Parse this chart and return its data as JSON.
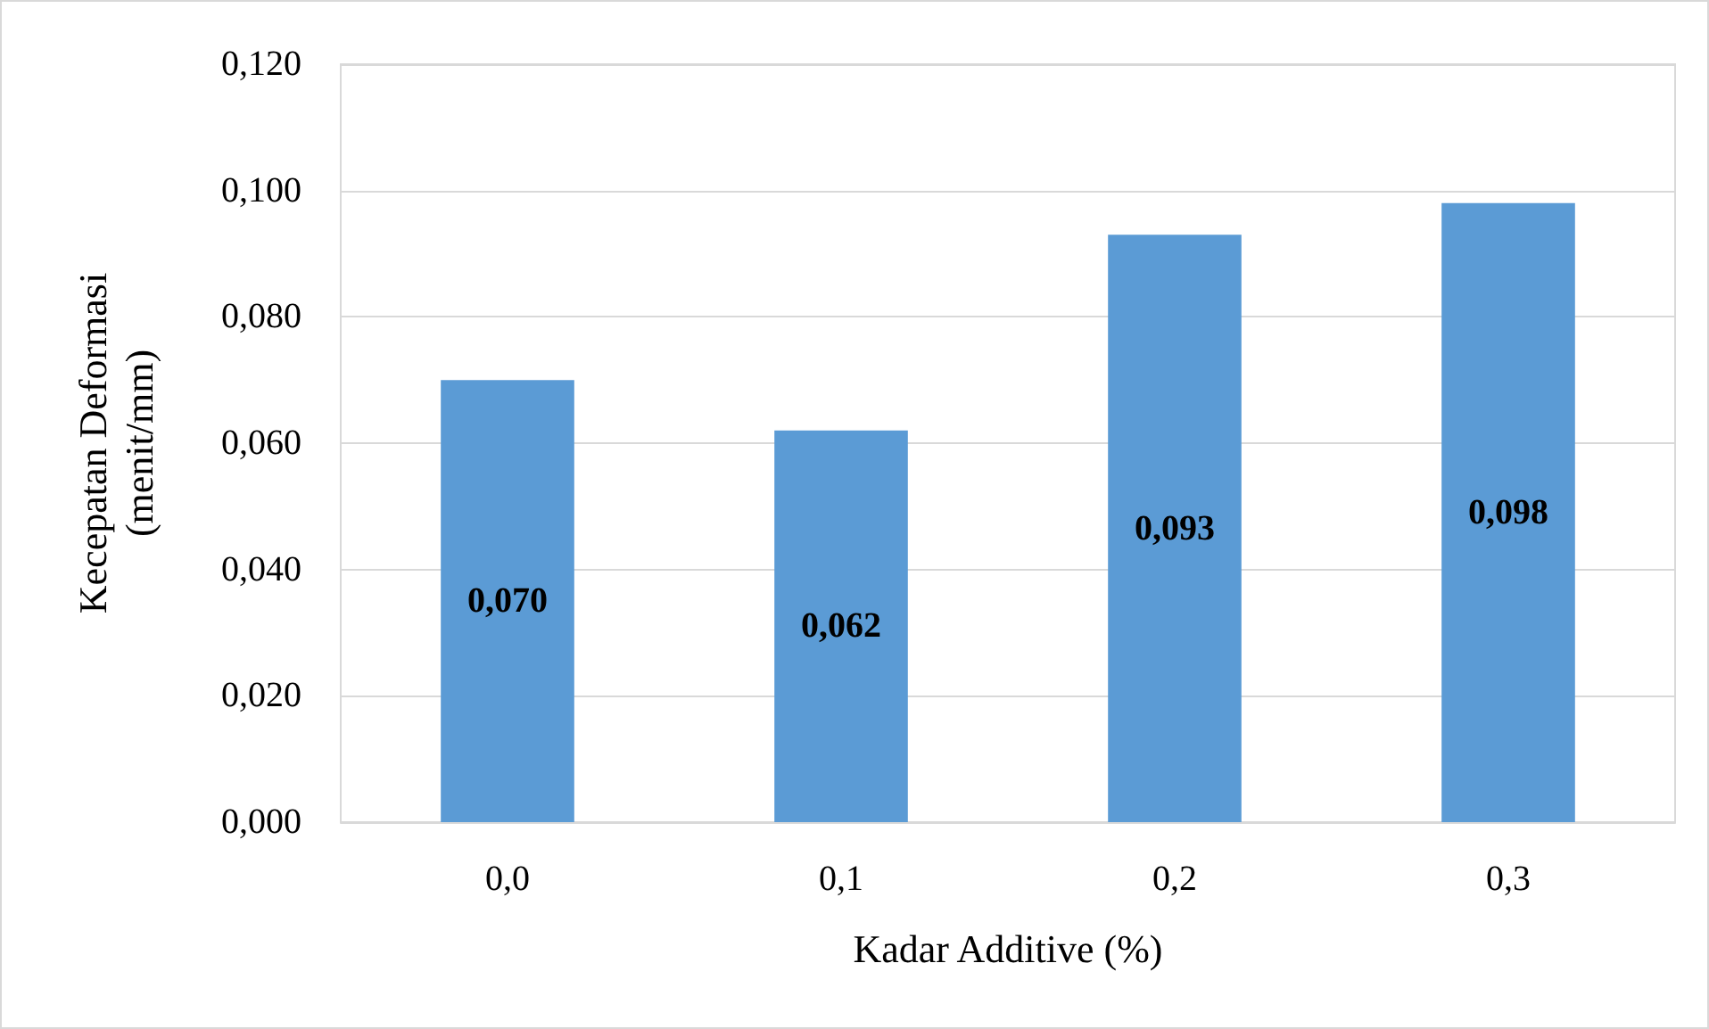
{
  "chart_data": {
    "type": "bar",
    "xlabel": "Kadar Additive (%)",
    "ylabel": "Kecepatan Deformasi\n(menit/mm)",
    "categories": [
      "0,0",
      "0,1",
      "0,2",
      "0,3"
    ],
    "values": [
      0.07,
      0.062,
      0.093,
      0.098
    ],
    "value_labels": [
      "0,070",
      "0,062",
      "0,093",
      "0,098"
    ],
    "color": "#5b9bd5",
    "ylim": [
      0,
      0.12
    ],
    "yticks": [
      {
        "value": 0,
        "label": "0,000"
      },
      {
        "value": 0.02,
        "label": "0,020"
      },
      {
        "value": 0.04,
        "label": "0,040"
      },
      {
        "value": 0.06,
        "label": "0,060"
      },
      {
        "value": 0.08,
        "label": "0,080"
      },
      {
        "value": 0.1,
        "label": "0,100"
      },
      {
        "value": 0.12,
        "label": "0,120"
      }
    ],
    "grid": "y"
  }
}
